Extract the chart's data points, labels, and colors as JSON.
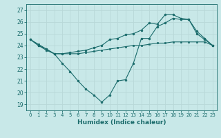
{
  "title": "",
  "xlabel": "Humidex (Indice chaleur)",
  "ylabel": "",
  "background_color": "#c8e8e8",
  "grid_color": "#b8d8d8",
  "line_color": "#1a6b6b",
  "xlim": [
    -0.5,
    23.5
  ],
  "ylim": [
    18.5,
    27.5
  ],
  "yticks": [
    19,
    20,
    21,
    22,
    23,
    24,
    25,
    26,
    27
  ],
  "xticks": [
    0,
    1,
    2,
    3,
    4,
    5,
    6,
    7,
    8,
    9,
    10,
    11,
    12,
    13,
    14,
    15,
    16,
    17,
    18,
    19,
    20,
    21,
    22,
    23
  ],
  "line1": {
    "x": [
      0,
      1,
      2,
      3,
      4,
      5,
      6,
      7,
      8,
      9,
      10,
      11,
      12,
      13,
      14,
      15,
      16,
      17,
      18,
      19,
      20,
      21,
      22,
      23
    ],
    "y": [
      24.5,
      24.1,
      23.7,
      23.3,
      23.3,
      23.3,
      23.3,
      23.4,
      23.5,
      23.6,
      23.7,
      23.8,
      23.9,
      24.0,
      24.0,
      24.1,
      24.2,
      24.2,
      24.3,
      24.3,
      24.3,
      24.3,
      24.3,
      24.0
    ]
  },
  "line2": {
    "x": [
      0,
      1,
      2,
      3,
      4,
      5,
      6,
      7,
      8,
      9,
      10,
      11,
      12,
      13,
      14,
      15,
      16,
      17,
      18,
      19,
      20,
      21,
      22,
      23
    ],
    "y": [
      24.5,
      24.0,
      23.6,
      23.3,
      22.5,
      21.8,
      21.0,
      20.3,
      19.8,
      19.2,
      19.8,
      21.0,
      21.1,
      22.5,
      24.6,
      24.6,
      25.6,
      25.9,
      26.3,
      26.2,
      26.2,
      25.2,
      24.6,
      24.0
    ]
  },
  "line3": {
    "x": [
      0,
      1,
      2,
      3,
      4,
      5,
      6,
      7,
      8,
      9,
      10,
      11,
      12,
      13,
      14,
      15,
      16,
      17,
      18,
      19,
      20,
      21,
      22,
      23
    ],
    "y": [
      24.5,
      24.0,
      23.7,
      23.3,
      23.3,
      23.4,
      23.5,
      23.6,
      23.8,
      24.0,
      24.5,
      24.6,
      24.9,
      25.0,
      25.3,
      25.9,
      25.8,
      26.6,
      26.6,
      26.3,
      26.2,
      25.0,
      24.5,
      24.0
    ]
  }
}
